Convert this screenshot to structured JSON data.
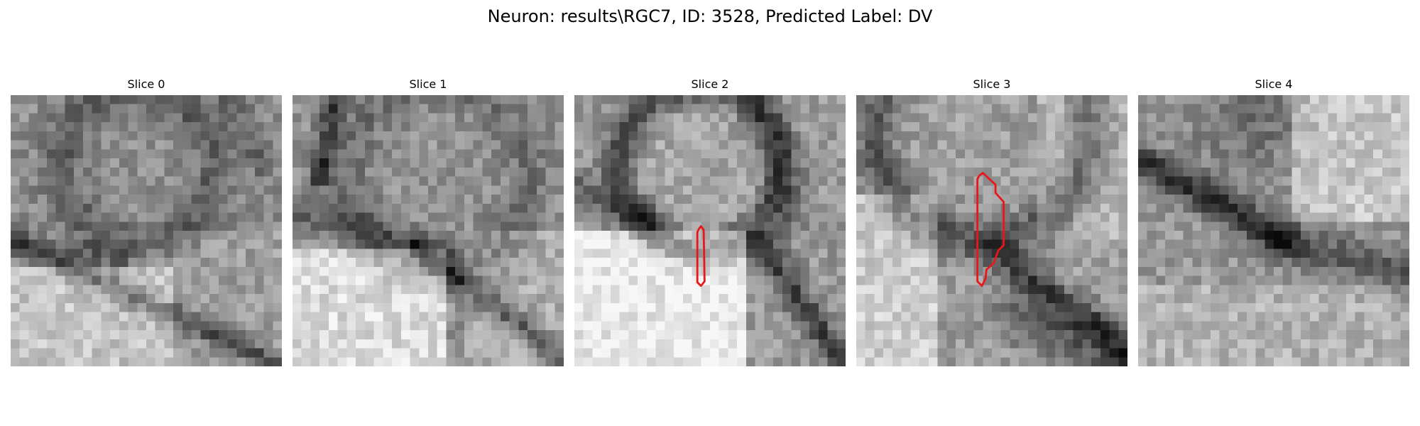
{
  "figure": {
    "title": "Neuron: results\\RGC7, ID: 3528, Predicted Label: DV"
  },
  "panels": [
    {
      "title": "Slice 0",
      "pattern": "s0",
      "has_contour": false
    },
    {
      "title": "Slice 1",
      "pattern": "s1",
      "has_contour": false
    },
    {
      "title": "Slice 2",
      "pattern": "s2",
      "has_contour": true
    },
    {
      "title": "Slice 3",
      "pattern": "s3",
      "has_contour": true
    },
    {
      "title": "Slice 4",
      "pattern": "s4",
      "has_contour": false
    }
  ],
  "colors": {
    "contour": "#e8171b",
    "background": "#ffffff"
  }
}
